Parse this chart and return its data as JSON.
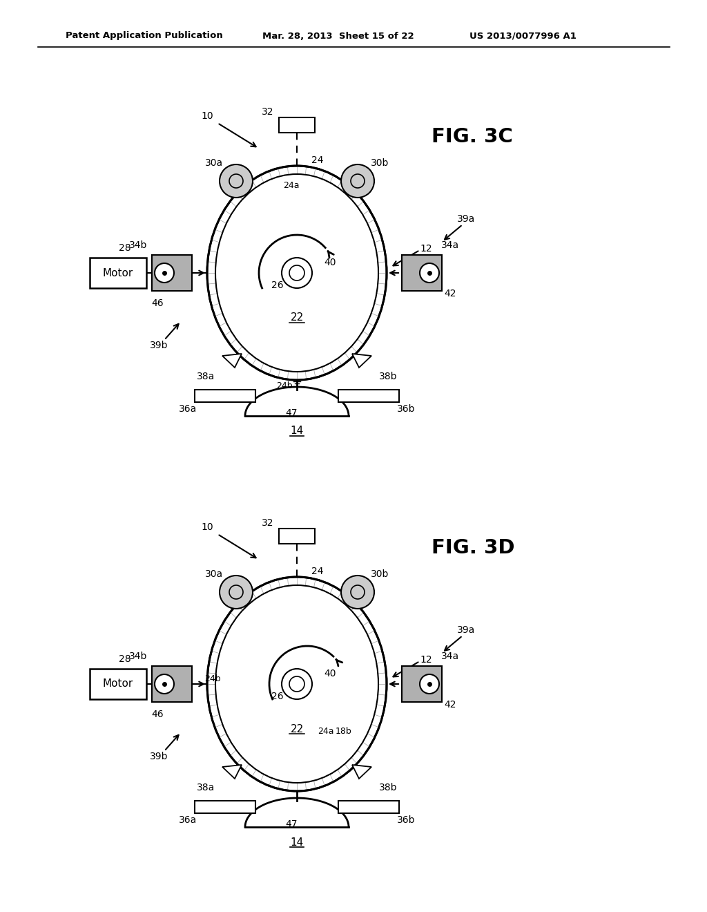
{
  "background_color": "#ffffff",
  "header_left": "Patent Application Publication",
  "header_mid": "Mar. 28, 2013  Sheet 15 of 22",
  "header_right": "US 2013/0077996 A1",
  "fig3c_label": "FIG. 3C",
  "fig3d_label": "FIG. 3D",
  "line_color": "#000000",
  "text_color": "#000000"
}
